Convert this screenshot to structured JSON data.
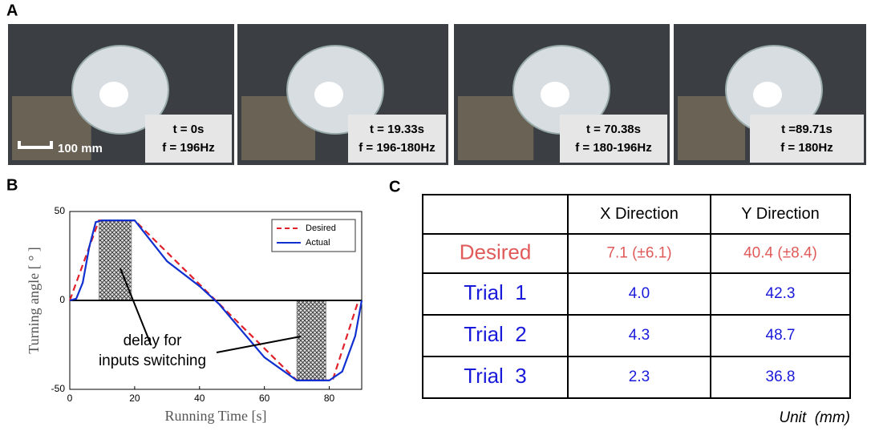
{
  "panel_labels": [
    "A",
    "B",
    "C"
  ],
  "panel_a": {
    "scale_bar": "100 mm",
    "frames": [
      {
        "time": "t = 0s",
        "freq": "f = 196Hz"
      },
      {
        "time": "t = 19.33s",
        "freq": "f = 196-180Hz"
      },
      {
        "time": "t = 70.38s",
        "freq": "f = 180-196Hz"
      },
      {
        "time": "t =89.71s",
        "freq": "f = 180Hz"
      }
    ]
  },
  "chart_data": {
    "type": "line",
    "xlabel": "Running Time [s]",
    "ylabel": "Turning angle [ ° ]",
    "xlim": [
      0,
      90
    ],
    "ylim": [
      -50,
      50
    ],
    "xticks": [
      0,
      20,
      40,
      60,
      80
    ],
    "yticks": [
      -50,
      0,
      50
    ],
    "legend": "upper right",
    "series": [
      {
        "name": "Desired",
        "color": "#e0202a",
        "dash": true,
        "x": [
          0,
          9,
          20,
          70,
          81,
          89
        ],
        "values": [
          0,
          45,
          45,
          -45,
          -45,
          0
        ]
      },
      {
        "name": "Actual",
        "color": "#1030d0",
        "dash": false,
        "x": [
          0,
          2,
          4,
          6,
          8,
          10,
          20,
          30,
          40,
          46,
          60,
          70,
          80,
          84,
          88,
          90
        ],
        "values": [
          0,
          1,
          10,
          30,
          44,
          45,
          45,
          22,
          8,
          -2,
          -32,
          -45,
          -45,
          -40,
          -20,
          0
        ]
      }
    ],
    "shaded_regions": [
      {
        "x": [
          9,
          19
        ],
        "y": [
          0,
          45
        ]
      },
      {
        "x": [
          70,
          79
        ],
        "y": [
          -45,
          0
        ]
      }
    ],
    "annotation": [
      "delay for",
      "inputs switching"
    ]
  },
  "table": {
    "header": [
      "X Direction",
      "Y Direction"
    ],
    "rows": [
      [
        "Desired",
        "7.1 (±6.1)",
        "40.4 (±8.4)"
      ],
      [
        "Trial  1",
        "4.0",
        "42.3"
      ],
      [
        "Trial  2",
        "4.3",
        "48.7"
      ],
      [
        "Trial  3",
        "2.3",
        "36.8"
      ]
    ],
    "note": "Unit  (mm)"
  }
}
